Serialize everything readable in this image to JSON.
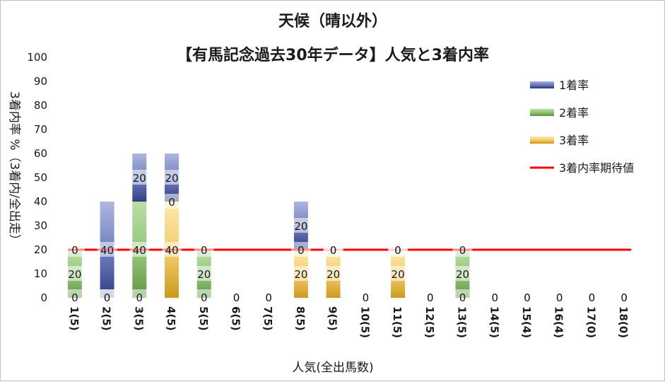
{
  "chart_data": {
    "type": "bar",
    "stacked": true,
    "title": "天候（晴以外）",
    "subtitle": "【有馬記念過去30年データ】人気と3着内率",
    "xlabel": "人気(全出馬数)",
    "ylabel": "3着内率 %（3着内/全出走）",
    "ylim": [
      0,
      100
    ],
    "yticks": [
      "0",
      "10",
      "20",
      "30",
      "40",
      "50",
      "60",
      "70",
      "80",
      "90",
      "100"
    ],
    "categories": [
      "1(5)",
      "2(5)",
      "3(5)",
      "4(5)",
      "5(5)",
      "6(5)",
      "7(5)",
      "8(5)",
      "9(5)",
      "10(5)",
      "11(5)",
      "12(5)",
      "13(5)",
      "14(5)",
      "15(4)",
      "16(4)",
      "17(0)",
      "18(0)"
    ],
    "series": [
      {
        "name": "3着率",
        "color": "#d4a017",
        "values": [
          0,
          0,
          0,
          40,
          0,
          0,
          0,
          20,
          20,
          0,
          20,
          0,
          0,
          0,
          0,
          0,
          0,
          0
        ]
      },
      {
        "name": "2着率",
        "color": "#70ad47",
        "values": [
          20,
          0,
          40,
          0,
          20,
          0,
          0,
          0,
          0,
          0,
          0,
          0,
          20,
          0,
          0,
          0,
          0,
          0
        ]
      },
      {
        "name": "1着率",
        "color": "#2f3f8f",
        "values": [
          0,
          40,
          20,
          20,
          0,
          0,
          0,
          20,
          0,
          0,
          0,
          0,
          0,
          0,
          0,
          0,
          0,
          0
        ]
      }
    ],
    "reference_line": {
      "name": "3着内率期待値",
      "color": "#ff0000",
      "value": 20
    },
    "legend": {
      "position": "right",
      "entries": [
        "1着率",
        "2着率",
        "3着率",
        "3着内率期待値"
      ]
    },
    "grid": false
  }
}
